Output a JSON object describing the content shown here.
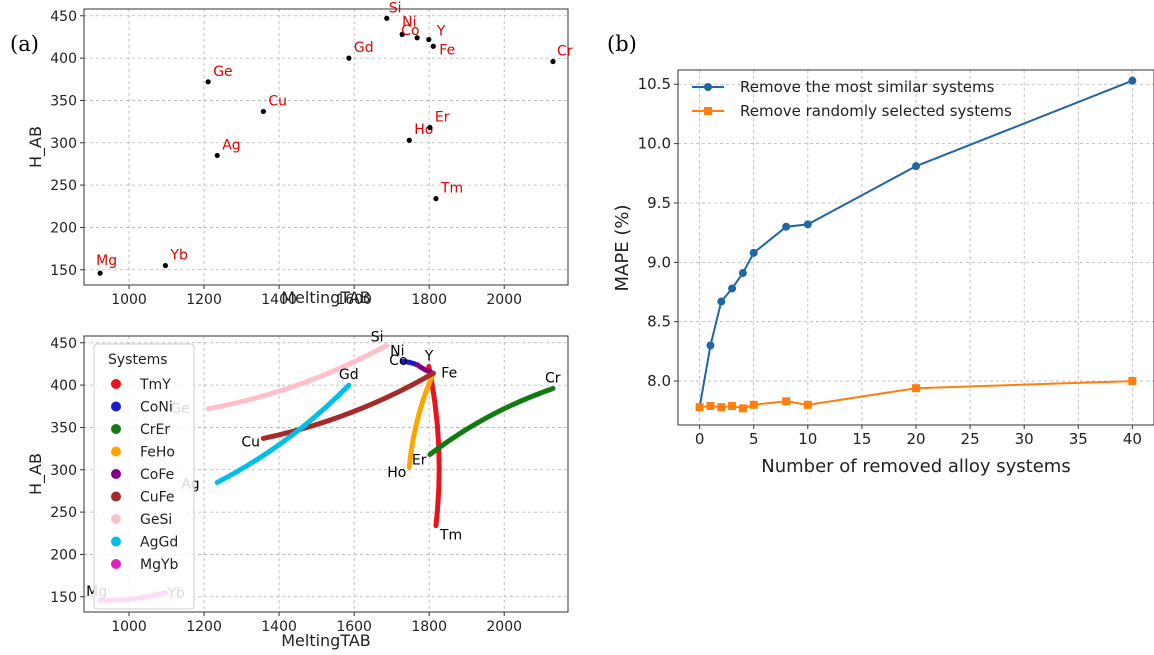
{
  "panel_labels": {
    "a": "(a)",
    "b": "(b)"
  },
  "chart_data": [
    {
      "id": "a-top",
      "type": "scatter",
      "xlabel": "MeltingTAB",
      "ylabel": "H_AB",
      "xlim": [
        880,
        2170
      ],
      "ylim": [
        132,
        458
      ],
      "xticks": [
        1000,
        1200,
        1400,
        1600,
        1800,
        2000
      ],
      "yticks": [
        150,
        200,
        250,
        300,
        350,
        400,
        450
      ],
      "grid": true,
      "point_color": "#000000",
      "label_color": "#e00000",
      "points": [
        {
          "label": "Mg",
          "x": 923,
          "y": 146
        },
        {
          "label": "Yb",
          "x": 1097,
          "y": 155
        },
        {
          "label": "Ag",
          "x": 1235,
          "y": 285
        },
        {
          "label": "Ge",
          "x": 1211,
          "y": 372
        },
        {
          "label": "Cu",
          "x": 1358,
          "y": 337
        },
        {
          "label": "Gd",
          "x": 1586,
          "y": 400
        },
        {
          "label": "Si",
          "x": 1687,
          "y": 447
        },
        {
          "label": "Ni",
          "x": 1728,
          "y": 428
        },
        {
          "label": "Co",
          "x": 1768,
          "y": 424
        },
        {
          "label": "Y",
          "x": 1799,
          "y": 422
        },
        {
          "label": "Fe",
          "x": 1811,
          "y": 414
        },
        {
          "label": "Ho",
          "x": 1747,
          "y": 303
        },
        {
          "label": "Er",
          "x": 1802,
          "y": 318
        },
        {
          "label": "Tm",
          "x": 1818,
          "y": 234
        },
        {
          "label": "Cr",
          "x": 2130,
          "y": 396
        }
      ]
    },
    {
      "id": "a-bottom",
      "type": "line",
      "xlabel": "MeltingTAB",
      "ylabel": "H_AB",
      "xlim": [
        880,
        2170
      ],
      "ylim": [
        132,
        458
      ],
      "xticks": [
        1000,
        1200,
        1400,
        1600,
        1800,
        2000
      ],
      "yticks": [
        150,
        200,
        250,
        300,
        350,
        400,
        450
      ],
      "grid": true,
      "legend_title": "Systems",
      "legend_position": "upper-left",
      "series": [
        {
          "name": "TmY",
          "color": "#e8141b",
          "from": [
            1818,
            234
          ],
          "to": [
            1799,
            422
          ]
        },
        {
          "name": "CoNi",
          "color": "#1a1acc",
          "from": [
            1768,
            424
          ],
          "to": [
            1728,
            428
          ]
        },
        {
          "name": "CrEr",
          "color": "#117a11",
          "from": [
            2130,
            396
          ],
          "to": [
            1802,
            318
          ]
        },
        {
          "name": "FeHo",
          "color": "#ffa500",
          "from": [
            1811,
            414
          ],
          "to": [
            1747,
            303
          ]
        },
        {
          "name": "CoFe",
          "color": "#800080",
          "from": [
            1768,
            424
          ],
          "to": [
            1811,
            414
          ]
        },
        {
          "name": "CuFe",
          "color": "#a52a2a",
          "from": [
            1358,
            337
          ],
          "to": [
            1811,
            414
          ]
        },
        {
          "name": "GeSi",
          "color": "#ffc0cb",
          "from": [
            1211,
            372
          ],
          "to": [
            1687,
            447
          ]
        },
        {
          "name": "AgGd",
          "color": "#00bfe6",
          "from": [
            1235,
            285
          ],
          "to": [
            1586,
            400
          ]
        },
        {
          "name": "MgYb",
          "color": "#e020c0",
          "from": [
            923,
            146
          ],
          "to": [
            1097,
            155
          ]
        }
      ],
      "end_labels": [
        {
          "label": "Si",
          "x": 1687,
          "y": 447
        },
        {
          "label": "Ni",
          "x": 1728,
          "y": 428
        },
        {
          "label": "Y",
          "x": 1799,
          "y": 422
        },
        {
          "label": "Co",
          "x": 1768,
          "y": 424
        },
        {
          "label": "Fe",
          "x": 1811,
          "y": 414
        },
        {
          "label": "Gd",
          "x": 1586,
          "y": 400
        },
        {
          "label": "Ge",
          "x": 1211,
          "y": 372
        },
        {
          "label": "Cu",
          "x": 1358,
          "y": 337
        },
        {
          "label": "Ag",
          "x": 1235,
          "y": 285
        },
        {
          "label": "Ho",
          "x": 1747,
          "y": 303
        },
        {
          "label": "Er",
          "x": 1802,
          "y": 318
        },
        {
          "label": "Tm",
          "x": 1818,
          "y": 234
        },
        {
          "label": "Cr",
          "x": 2130,
          "y": 396
        },
        {
          "label": "Mg",
          "x": 923,
          "y": 146
        },
        {
          "label": "Yb",
          "x": 1097,
          "y": 155
        }
      ]
    },
    {
      "id": "b",
      "type": "line",
      "xlabel": "Number of removed alloy systems",
      "ylabel": "MAPE (%)",
      "xlim": [
        -2,
        42
      ],
      "ylim": [
        7.63,
        10.62
      ],
      "xticks": [
        0,
        5,
        10,
        15,
        20,
        25,
        30,
        35,
        40
      ],
      "yticks": [
        8.0,
        8.5,
        9.0,
        9.5,
        10.0,
        10.5
      ],
      "grid": true,
      "legend_position": "upper-left",
      "x": [
        0,
        1,
        2,
        3,
        4,
        5,
        8,
        10,
        20,
        40
      ],
      "series": [
        {
          "name": "Remove the most similar systems",
          "color": "#1f65a8",
          "marker": "circle",
          "values": [
            7.78,
            8.3,
            8.67,
            8.78,
            8.91,
            9.08,
            9.3,
            9.32,
            9.81,
            10.53
          ]
        },
        {
          "name": "Remove randomly selected systems",
          "color": "#ff7f0e",
          "marker": "square",
          "values": [
            7.78,
            7.79,
            7.78,
            7.79,
            7.77,
            7.8,
            7.83,
            7.8,
            7.94,
            8.0
          ]
        }
      ]
    }
  ]
}
